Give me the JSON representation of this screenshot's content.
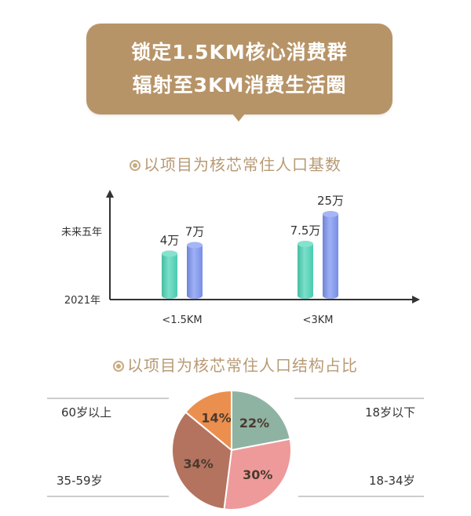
{
  "banner": {
    "line1": "锁定1.5KM核心消费群",
    "line2": "辐射至3KM消费生活圈",
    "color": "#b79468"
  },
  "section1": {
    "title": "以项目为核芯常住人口基数"
  },
  "section2": {
    "title": "以项目为核芯常住人口结构占比"
  },
  "chart_data": [
    {
      "type": "bar",
      "title": "以项目为核芯常住人口基数",
      "categories": [
        "<1.5KM",
        "<3KM"
      ],
      "series": [
        {
          "name": "2021年",
          "values": [
            4,
            7.5
          ],
          "labels": [
            "4万",
            "7.5万"
          ],
          "color": "#4fd6b8"
        },
        {
          "name": "未来五年",
          "values": [
            7,
            25
          ],
          "labels": [
            "7万",
            "25万"
          ],
          "color": "#7e95f2"
        }
      ],
      "y_axis_labels": [
        "2021年",
        "未来五年"
      ]
    },
    {
      "type": "pie",
      "title": "以项目为核芯常住人口结构占比",
      "slices": [
        {
          "label": "18岁以下",
          "value": 22,
          "text": "22%",
          "color": "#8fb3a3"
        },
        {
          "label": "18-34岁",
          "value": 30,
          "text": "30%",
          "color": "#ee9a9a"
        },
        {
          "label": "35-59岁",
          "value": 34,
          "text": "34%",
          "color": "#b4735f"
        },
        {
          "label": "60岁以上",
          "value": 14,
          "text": "14%",
          "color": "#eb8f4f"
        }
      ]
    }
  ]
}
